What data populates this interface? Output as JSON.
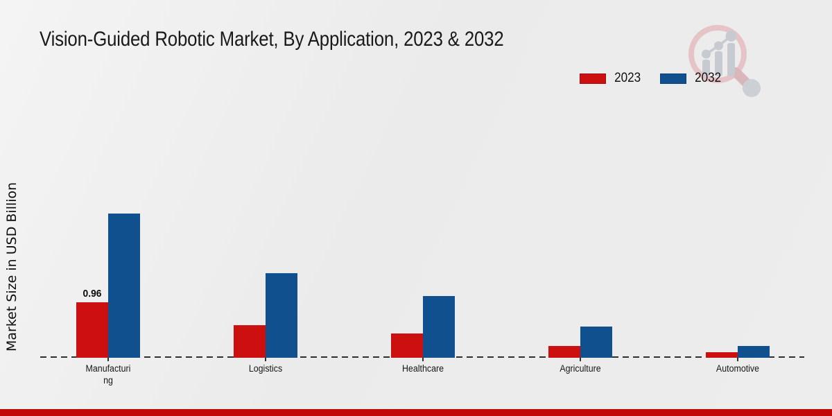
{
  "title": "Vision-Guided Robotic Market, By Application, 2023 & 2032",
  "ylabel": "Market Size in USD Billion",
  "legend": [
    {
      "label": "2023",
      "color": "#cc0f0f"
    },
    {
      "label": "2032",
      "color": "#11508f"
    }
  ],
  "chart_data": {
    "type": "bar",
    "categories": [
      "Manufacturing",
      "Logistics",
      "Healthcare",
      "Agriculture",
      "Automotive"
    ],
    "category_lines": [
      [
        "Manufacturi",
        "ng"
      ],
      [
        "Logistics"
      ],
      [
        "Healthcare"
      ],
      [
        "Agriculture"
      ],
      [
        "Automotive"
      ]
    ],
    "series": [
      {
        "name": "2023",
        "color": "#cc0f0f",
        "values": [
          0.96,
          0.56,
          0.42,
          0.2,
          0.1
        ]
      },
      {
        "name": "2032",
        "color": "#11508f",
        "values": [
          2.5,
          1.46,
          1.07,
          0.54,
          0.2
        ]
      }
    ],
    "annotations": [
      {
        "series_index": 0,
        "category_index": 0,
        "text": "0.96"
      }
    ],
    "xlabel": "",
    "ylim": [
      0,
      3
    ],
    "y_axis_ticks_visible": false,
    "baseline_style": "dashed",
    "legend_position": "top-right"
  },
  "colors": {
    "background": "#ececec",
    "series_2023": "#cc0f0f",
    "series_2032": "#11508f",
    "footer_strip": "#c20808",
    "baseline": "#2e2e2e"
  },
  "watermark": {
    "name": "market-research-magnifier-logo"
  }
}
